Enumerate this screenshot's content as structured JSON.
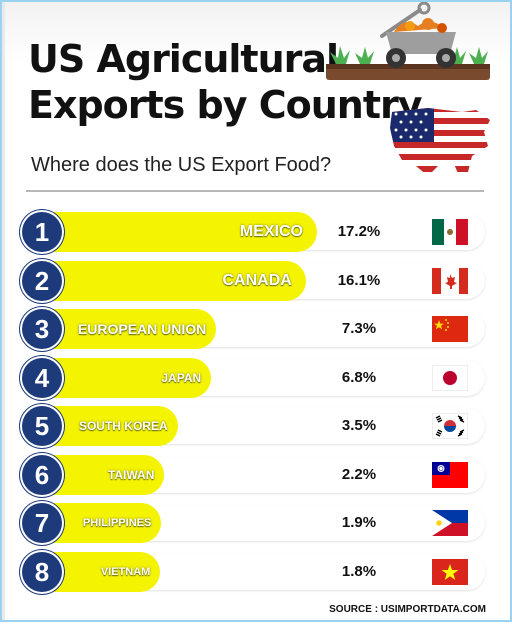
{
  "title": "US Agricultural\nExports by Country",
  "subtitle": "Where does the US Export Food?",
  "source": "SOURCE : USIMPORTDATA.COM",
  "colors": {
    "bar": "#f4f400",
    "rank_circle": "#1d3a7a",
    "text": "#111111"
  },
  "chart_data": {
    "type": "bar",
    "orientation": "horizontal",
    "title": "US Agricultural Exports by Country",
    "subtitle": "Where does the US Export Food?",
    "value_format": "percent",
    "xlim": [
      0,
      17.2
    ],
    "rows": [
      {
        "rank": "1",
        "country": "MEXICO",
        "value": 17.2,
        "label": "17.2%",
        "flag": "mexico-flag-icon"
      },
      {
        "rank": "2",
        "country": "CANADA",
        "value": 16.1,
        "label": "16.1%",
        "flag": "canada-flag-icon"
      },
      {
        "rank": "3",
        "country": "EUROPEAN UNION",
        "value": 7.3,
        "label": "7.3%",
        "flag": "china-flag-icon"
      },
      {
        "rank": "4",
        "country": "JAPAN",
        "value": 6.8,
        "label": "6.8%",
        "flag": "japan-flag-icon"
      },
      {
        "rank": "5",
        "country": "SOUTH KOREA",
        "value": 3.5,
        "label": "3.5%",
        "flag": "south-korea-flag-icon"
      },
      {
        "rank": "6",
        "country": "TAIWAN",
        "value": 2.2,
        "label": "2.2%",
        "flag": "taiwan-flag-icon"
      },
      {
        "rank": "7",
        "country": "PHILIPPINES",
        "value": 1.9,
        "label": "1.9%",
        "flag": "philippines-flag-icon"
      },
      {
        "rank": "8",
        "country": "VIETNAM",
        "value": 1.8,
        "label": "1.8%",
        "flag": "vietnam-flag-icon"
      }
    ]
  },
  "illustrations": [
    "farm-cart-icon",
    "usa-flag-map-icon"
  ]
}
